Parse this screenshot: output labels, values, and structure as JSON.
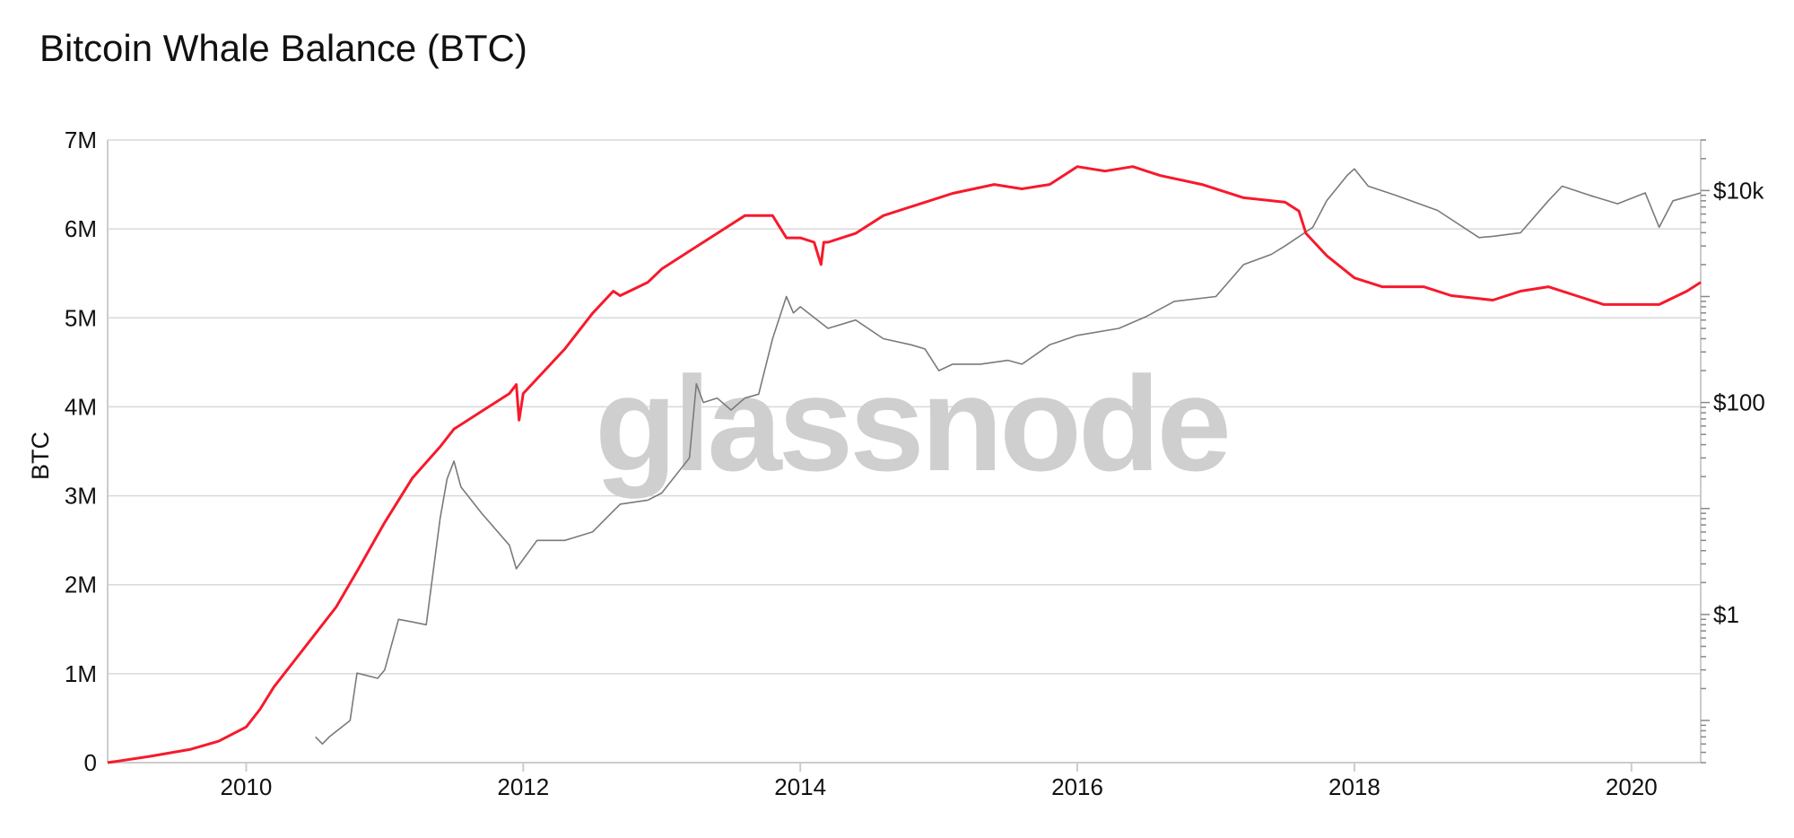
{
  "title": "Bitcoin Whale Balance (BTC)",
  "watermark": "glassnode",
  "chart_data": {
    "type": "line",
    "title": "Bitcoin Whale Balance (BTC)",
    "ylabel": "BTC",
    "xlim": [
      2009.0,
      2020.5
    ],
    "ylim": [
      0,
      7000000
    ],
    "x_ticks": [
      2010,
      2012,
      2014,
      2016,
      2018,
      2020
    ],
    "x_tick_labels": [
      "2010",
      "2012",
      "2014",
      "2016",
      "2018",
      "2020"
    ],
    "y_ticks": [
      0,
      1000000,
      2000000,
      3000000,
      4000000,
      5000000,
      6000000,
      7000000
    ],
    "y_tick_labels": [
      "0",
      "1M",
      "2M",
      "3M",
      "4M",
      "5M",
      "6M",
      "7M"
    ],
    "y2_scale": "log",
    "y2lim": [
      0.04,
      30000
    ],
    "y2_ticks": [
      1,
      100,
      10000
    ],
    "y2_tick_labels": [
      "$1",
      "$100",
      "$10k"
    ],
    "grid": "horizontal",
    "colors": {
      "whale_balance": "#f7192b",
      "price": "#7a7a7a",
      "grid": "#d9d9d9",
      "watermark": "#cfcfcf"
    },
    "series": [
      {
        "axis": "left",
        "x": [
          2009.0,
          2009.3,
          2009.6,
          2009.8,
          2010.0,
          2010.1,
          2010.2,
          2010.35,
          2010.5,
          2010.65,
          2010.8,
          2011.0,
          2011.2,
          2011.4,
          2011.5,
          2011.7,
          2011.9,
          2011.95,
          2011.97,
          2012.0,
          2012.3,
          2012.5,
          2012.65,
          2012.7,
          2012.9,
          2013.0,
          2013.2,
          2013.4,
          2013.6,
          2013.8,
          2013.9,
          2014.0,
          2014.1,
          2014.15,
          2014.17,
          2014.2,
          2014.4,
          2014.6,
          2014.9,
          2015.1,
          2015.4,
          2015.6,
          2015.8,
          2016.0,
          2016.2,
          2016.4,
          2016.6,
          2016.9,
          2017.2,
          2017.5,
          2017.6,
          2017.65,
          2017.8,
          2018.0,
          2018.2,
          2018.5,
          2018.7,
          2019.0,
          2019.2,
          2019.4,
          2019.6,
          2019.8,
          2020.0,
          2020.2,
          2020.4,
          2020.5
        ],
        "y": [
          0,
          70000,
          150000,
          240000,
          400000,
          600000,
          850000,
          1150000,
          1450000,
          1750000,
          2150000,
          2700000,
          3200000,
          3550000,
          3750000,
          3950000,
          4150000,
          4250000,
          3850000,
          4150000,
          4650000,
          5050000,
          5300000,
          5250000,
          5400000,
          5550000,
          5750000,
          5950000,
          6150000,
          6150000,
          5900000,
          5900000,
          5850000,
          5600000,
          5850000,
          5850000,
          5950000,
          6150000,
          6300000,
          6400000,
          6500000,
          6450000,
          6500000,
          6700000,
          6650000,
          6700000,
          6600000,
          6500000,
          6350000,
          6300000,
          6200000,
          5950000,
          5700000,
          5450000,
          5350000,
          5350000,
          5250000,
          5200000,
          5300000,
          5350000,
          5250000,
          5150000,
          5150000,
          5150000,
          5300000,
          5400000
        ]
      },
      {
        "axis": "right",
        "x": [
          2010.5,
          2010.55,
          2010.6,
          2010.75,
          2010.8,
          2010.95,
          2011.0,
          2011.1,
          2011.2,
          2011.3,
          2011.4,
          2011.45,
          2011.5,
          2011.55,
          2011.7,
          2011.9,
          2011.95,
          2012.1,
          2012.3,
          2012.5,
          2012.7,
          2012.9,
          2013.0,
          2013.2,
          2013.25,
          2013.3,
          2013.4,
          2013.5,
          2013.6,
          2013.7,
          2013.8,
          2013.9,
          2013.95,
          2014.0,
          2014.2,
          2014.4,
          2014.6,
          2014.8,
          2014.9,
          2015.0,
          2015.1,
          2015.3,
          2015.5,
          2015.6,
          2015.8,
          2016.0,
          2016.3,
          2016.5,
          2016.7,
          2017.0,
          2017.2,
          2017.4,
          2017.5,
          2017.7,
          2017.8,
          2017.95,
          2018.0,
          2018.1,
          2018.3,
          2018.6,
          2018.9,
          2019.0,
          2019.2,
          2019.4,
          2019.5,
          2019.7,
          2019.9,
          2020.1,
          2020.2,
          2020.3,
          2020.5
        ],
        "y": [
          0.07,
          0.06,
          0.07,
          0.1,
          0.28,
          0.25,
          0.3,
          0.9,
          0.85,
          0.8,
          8,
          19,
          28,
          16,
          9,
          4.5,
          2.7,
          5,
          5,
          6,
          11,
          12,
          14,
          30,
          150,
          100,
          110,
          85,
          110,
          120,
          400,
          1000,
          700,
          800,
          500,
          600,
          400,
          350,
          320,
          200,
          230,
          230,
          250,
          230,
          350,
          430,
          500,
          650,
          900,
          1000,
          2000,
          2500,
          3000,
          4500,
          8000,
          14000,
          16000,
          11000,
          9000,
          6500,
          3600,
          3700,
          4000,
          8000,
          11000,
          9000,
          7500,
          9500,
          4500,
          8000,
          9500
        ]
      }
    ]
  }
}
